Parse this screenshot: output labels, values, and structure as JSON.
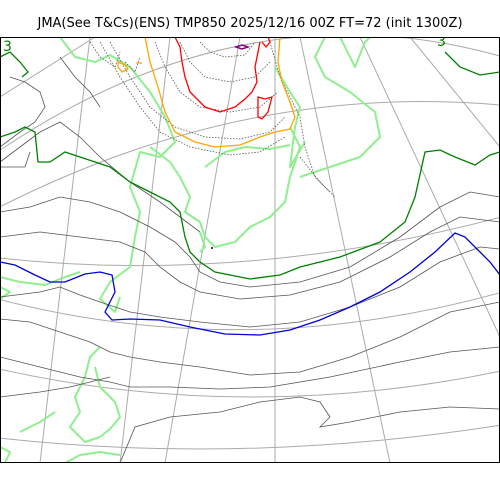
{
  "title": "JMA(See T&Cs)(ENS) TMP850 2025/12/16 00Z FT=72 (init 1300Z)",
  "contour_labels": [
    {
      "text": "3",
      "color": "#008000"
    },
    {
      "text": "3",
      "color": "#008000"
    }
  ],
  "colors": {
    "coastline": "#90ee90",
    "graticule": "#aaaaaa",
    "contour_gray": "#555555",
    "contour_dotted": "#555555",
    "contour_green": "#008000",
    "contour_blue": "#0000dd",
    "contour_orange": "#ffa500",
    "contour_red": "#ff0000",
    "contour_purple": "#800080"
  },
  "map": {
    "projection": "polar-stereographic"
  }
}
